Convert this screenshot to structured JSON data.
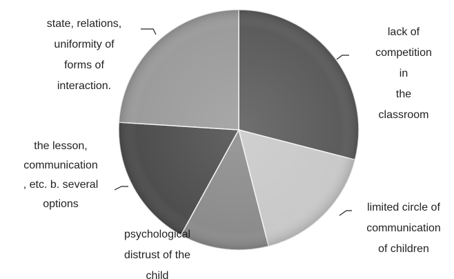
{
  "chart_data": {
    "type": "pie",
    "categories": [
      "lack of\ncompetition in\nthe classroom",
      "limited circle of\ncommunication\nof children",
      "psychological\ndistrust of the\nchild",
      "the lesson,\ncommunication\n, etc. b. several\noptions",
      "state, relations,\nuniformity of\nforms of\ninteraction."
    ],
    "values": [
      29,
      17,
      12,
      18,
      24
    ],
    "colors": [
      "#5c5c5c",
      "#c9c9c9",
      "#8c8c8c",
      "#4e4e4e",
      "#9c9c9c"
    ]
  }
}
